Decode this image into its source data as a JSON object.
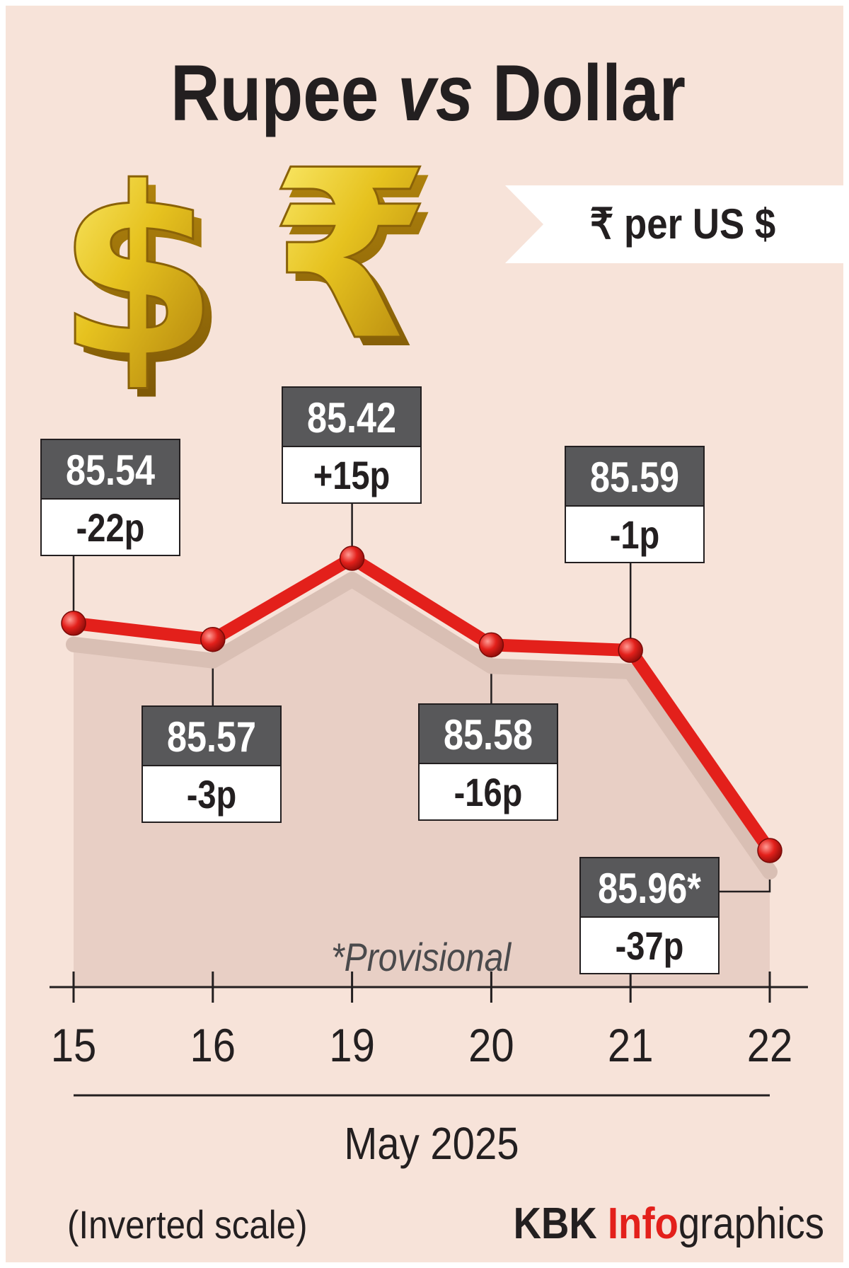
{
  "title": {
    "part1": "Rupee ",
    "part2": "vs",
    "part3": " Dollar"
  },
  "unit_banner": "₹  per US $",
  "icons": [
    "dollar-sign-3d-icon",
    "rupee-sign-3d-icon"
  ],
  "footnote": "*Provisional",
  "scale_note": "(Inverted scale)",
  "credit": {
    "part1": "KBK ",
    "part2": "Info",
    "part3": "graphics"
  },
  "colors": {
    "background": "#f7e3d9",
    "area": "#e8cfc5",
    "line": "#e3201b",
    "label_dark": "#58585a",
    "credit_accent": "#e3201b",
    "text": "#231f20"
  },
  "chart_data": {
    "type": "line",
    "scale": "inverted",
    "xlabel": "May 2025",
    "ylabel": "",
    "categories": [
      "15",
      "16",
      "19",
      "20",
      "21",
      "22"
    ],
    "series": [
      {
        "values": [
          85.54,
          85.57,
          85.42,
          85.58,
          85.59,
          85.96
        ],
        "value_labels": [
          "85.54",
          "85.57",
          "85.42",
          "85.58",
          "85.59",
          "85.96*"
        ],
        "change_labels": [
          "-22p",
          "-3p",
          "+15p",
          "-16p",
          "-1p",
          "-37p"
        ]
      }
    ]
  }
}
